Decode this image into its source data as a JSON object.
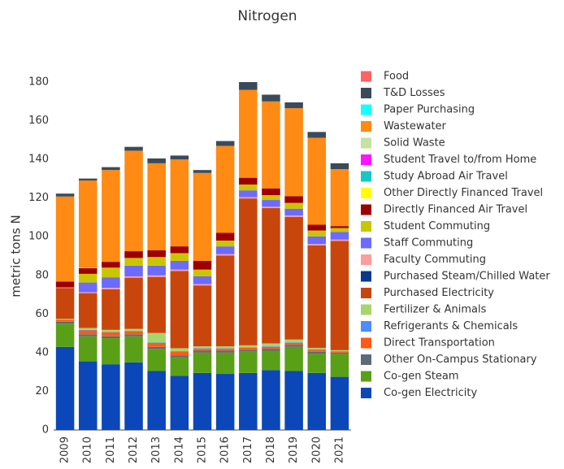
{
  "chart_data": {
    "type": "stacked_bar",
    "title": "Nitrogen",
    "y_label": "metric tons N",
    "categories": [
      "2009",
      "2010",
      "2011",
      "2012",
      "2013",
      "2014",
      "2015",
      "2016",
      "2017",
      "2018",
      "2019",
      "2020",
      "2021"
    ],
    "ylim": [
      0,
      180
    ],
    "yticks": [
      0,
      20,
      40,
      60,
      80,
      100,
      120,
      140,
      160,
      180
    ],
    "grid": false,
    "series": [
      {
        "name": "Co-gen Electricity",
        "color": "#0b47b8",
        "values": [
          43,
          35.5,
          34,
          35,
          30.5,
          28,
          29.5,
          29,
          29.5,
          31,
          30.5,
          29.5,
          27.5
        ]
      },
      {
        "name": "Co-gen Steam",
        "color": "#5aa017",
        "values": [
          12,
          13,
          13.5,
          13.5,
          11.5,
          9.5,
          10.5,
          11,
          11,
          10,
          12.5,
          10,
          12
        ]
      },
      {
        "name": "Other On-Campus Stationary",
        "color": "#5c6b78",
        "values": [
          1,
          1,
          1,
          1,
          1,
          1,
          1,
          1,
          1,
          1,
          1,
          1,
          0.5
        ]
      },
      {
        "name": "Direct Transportation",
        "color": "#ff5a14",
        "values": [
          1,
          2,
          2,
          1.5,
          2,
          2,
          1,
          1,
          1,
          1,
          1,
          1,
          0.5
        ]
      },
      {
        "name": "Refrigerants & Chemicals",
        "color": "#4c8dff",
        "values": [
          0,
          0.3,
          0.3,
          0.3,
          0.2,
          0.3,
          0.3,
          0.3,
          0.3,
          0.3,
          0.3,
          0.3,
          0.3
        ]
      },
      {
        "name": "Fertilizer & Animals",
        "color": "#a6d66a",
        "values": [
          0.5,
          1,
          1,
          1,
          5,
          1.5,
          1,
          1,
          1,
          1.5,
          1.5,
          0.7,
          0.5
        ]
      },
      {
        "name": "Purchased Electricity",
        "color": "#c8460c",
        "values": [
          16,
          18,
          21,
          26.5,
          29,
          40,
          31.5,
          47,
          76,
          70,
          63.5,
          53,
          56.5
        ]
      },
      {
        "name": "Purchased Steam/Chilled Water",
        "color": "#08398e",
        "values": [
          0,
          0,
          0,
          0,
          0,
          0,
          0,
          0,
          0,
          0,
          0,
          0,
          0
        ]
      },
      {
        "name": "Faculty Commuting",
        "color": "#ff9c9c",
        "values": [
          0.3,
          0.5,
          0.7,
          0.7,
          0.8,
          0.7,
          0.7,
          0.7,
          0.7,
          0.7,
          0.7,
          0.7,
          0.7
        ]
      },
      {
        "name": "Staff Commuting",
        "color": "#6b6bff",
        "values": [
          0,
          5,
          5.5,
          5.5,
          5,
          4.5,
          4,
          4,
          3.5,
          3.5,
          3.5,
          4,
          4
        ]
      },
      {
        "name": "Student Commuting",
        "color": "#c9c600",
        "values": [
          0,
          4.5,
          5,
          4,
          4.5,
          4,
          3.5,
          3,
          3,
          2.5,
          3,
          3,
          2
        ]
      },
      {
        "name": "Directly Financed Air Travel",
        "color": "#9c0000",
        "values": [
          3,
          3,
          3,
          3.5,
          3.5,
          3.5,
          4.5,
          4,
          3.5,
          3.5,
          3.5,
          3,
          1
        ]
      },
      {
        "name": "Other Directly Financed Travel",
        "color": "#ffff00",
        "values": [
          0,
          0.3,
          0,
          0,
          0,
          0,
          0,
          0,
          0,
          0,
          0,
          0,
          0
        ]
      },
      {
        "name": "Study Abroad Air Travel",
        "color": "#14c8c8",
        "values": [
          0,
          0,
          0,
          0,
          0,
          0,
          0,
          0,
          0,
          0,
          0,
          0,
          0
        ]
      },
      {
        "name": "Student Travel to/from Home",
        "color": "#ff14ff",
        "values": [
          0,
          0,
          0,
          0,
          0,
          0,
          0,
          0,
          0,
          0,
          0,
          0,
          0
        ]
      },
      {
        "name": "Solid Waste",
        "color": "#c6e29e",
        "values": [
          0,
          0,
          0,
          0,
          0,
          0,
          0,
          0,
          0,
          0,
          0,
          0,
          0
        ]
      },
      {
        "name": "Wastewater",
        "color": "#ff8a14",
        "values": [
          44,
          45,
          47.5,
          52,
          45,
          45,
          45.5,
          45,
          45.5,
          45,
          45.5,
          45,
          29.5
        ]
      },
      {
        "name": "Paper Purchasing",
        "color": "#14ffff",
        "values": [
          0,
          0,
          0,
          0,
          0,
          0,
          0,
          0,
          0,
          0,
          0,
          0,
          0
        ]
      },
      {
        "name": "T&D Losses",
        "color": "#3b4a5a",
        "values": [
          1.5,
          1,
          1.5,
          2,
          2.5,
          2,
          1.5,
          2.5,
          4,
          3.5,
          3,
          3,
          3
        ]
      },
      {
        "name": "Food",
        "color": "#ff6464",
        "values": [
          0,
          0,
          0,
          0,
          0,
          0,
          0,
          0,
          0,
          0,
          0,
          0,
          0
        ]
      }
    ]
  }
}
